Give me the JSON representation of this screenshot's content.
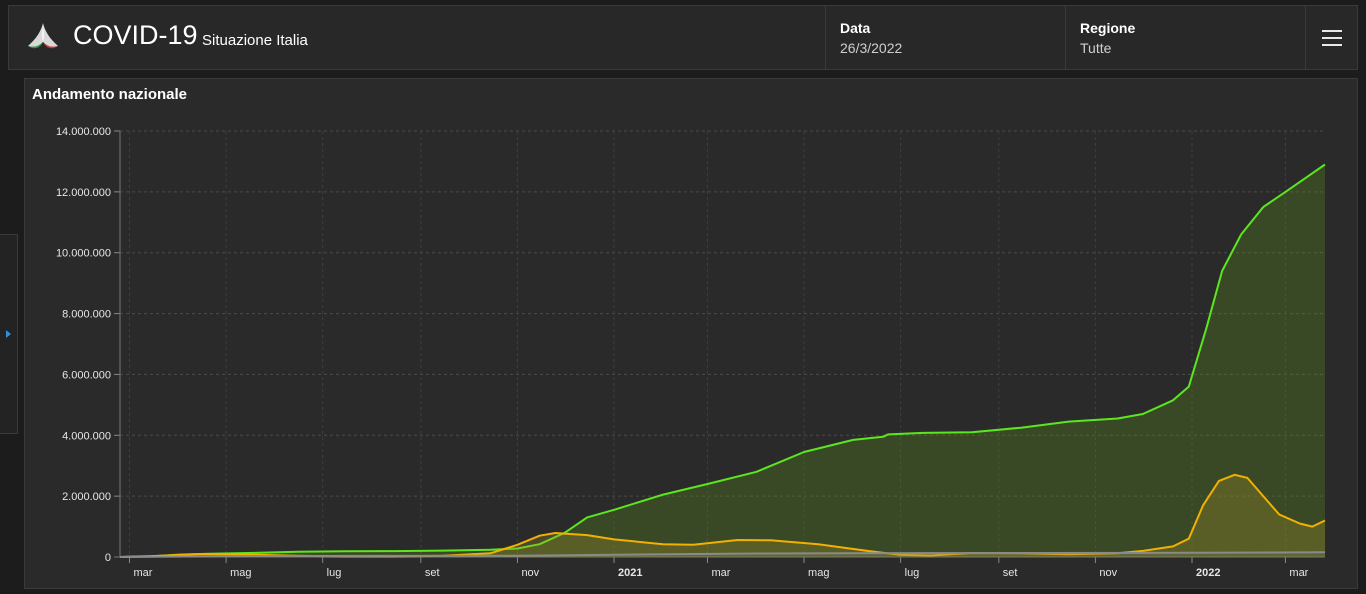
{
  "header": {
    "title": "COVID-19",
    "subtitle": "Situazione Italia",
    "data_label": "Data",
    "data_value": "26/3/2022",
    "region_label": "Regione",
    "region_value": "Tutte",
    "menu_icon": "hamburger-menu-icon",
    "logo_icon": "protezione-civile-logo"
  },
  "sidebar": {
    "toggle_icon": "triangle-right-icon",
    "accent": "#2f8fd8"
  },
  "chart_data": {
    "type": "area",
    "title": "Andamento nazionale",
    "ylim": [
      0,
      14000000
    ],
    "yticks": [
      0,
      2000000,
      4000000,
      6000000,
      8000000,
      10000000,
      12000000,
      14000000
    ],
    "ytick_labels": [
      "0",
      "2.000.000",
      "4.000.000",
      "6.000.000",
      "8.000.000",
      "10.000.000",
      "12.000.000",
      "14.000.000"
    ],
    "xlim": [
      "2020-02-24",
      "2022-03-26"
    ],
    "xticks": [
      {
        "date": "2020-03-01",
        "label": "mar",
        "bold": false
      },
      {
        "date": "2020-05-01",
        "label": "mag",
        "bold": false
      },
      {
        "date": "2020-07-01",
        "label": "lug",
        "bold": false
      },
      {
        "date": "2020-09-01",
        "label": "set",
        "bold": false
      },
      {
        "date": "2020-11-01",
        "label": "nov",
        "bold": false
      },
      {
        "date": "2021-01-01",
        "label": "2021",
        "bold": true
      },
      {
        "date": "2021-03-01",
        "label": "mar",
        "bold": false
      },
      {
        "date": "2021-05-01",
        "label": "mag",
        "bold": false
      },
      {
        "date": "2021-07-01",
        "label": "lug",
        "bold": false
      },
      {
        "date": "2021-09-01",
        "label": "set",
        "bold": false
      },
      {
        "date": "2021-11-01",
        "label": "nov",
        "bold": false
      },
      {
        "date": "2022-01-01",
        "label": "2022",
        "bold": true
      },
      {
        "date": "2022-03-01",
        "label": "mar",
        "bold": false
      }
    ],
    "grid": true,
    "series": [
      {
        "color": "#5ce61e",
        "fill": "rgba(90,140,30,0.32)",
        "points": [
          [
            "2020-02-24",
            0
          ],
          [
            "2020-03-15",
            20000
          ],
          [
            "2020-04-01",
            80000
          ],
          [
            "2020-04-20",
            110000
          ],
          [
            "2020-05-15",
            130000
          ],
          [
            "2020-06-15",
            170000
          ],
          [
            "2020-07-15",
            190000
          ],
          [
            "2020-08-15",
            195000
          ],
          [
            "2020-09-15",
            210000
          ],
          [
            "2020-10-15",
            240000
          ],
          [
            "2020-11-01",
            280000
          ],
          [
            "2020-11-15",
            420000
          ],
          [
            "2020-12-01",
            800000
          ],
          [
            "2020-12-15",
            1300000
          ],
          [
            "2021-01-01",
            1550000
          ],
          [
            "2021-02-01",
            2050000
          ],
          [
            "2021-03-01",
            2400000
          ],
          [
            "2021-04-01",
            2800000
          ],
          [
            "2021-05-01",
            3450000
          ],
          [
            "2021-06-01",
            3850000
          ],
          [
            "2021-06-20",
            3950000
          ],
          [
            "2021-06-23",
            4030000
          ],
          [
            "2021-07-15",
            4080000
          ],
          [
            "2021-08-15",
            4100000
          ],
          [
            "2021-09-15",
            4250000
          ],
          [
            "2021-10-15",
            4450000
          ],
          [
            "2021-11-15",
            4550000
          ],
          [
            "2021-12-01",
            4700000
          ],
          [
            "2021-12-20",
            5150000
          ],
          [
            "2021-12-30",
            5600000
          ],
          [
            "2022-01-10",
            7500000
          ],
          [
            "2022-01-20",
            9400000
          ],
          [
            "2022-02-01",
            10600000
          ],
          [
            "2022-02-15",
            11500000
          ],
          [
            "2022-03-01",
            12000000
          ],
          [
            "2022-03-15",
            12500000
          ],
          [
            "2022-03-26",
            12900000
          ]
        ]
      },
      {
        "color": "#f2b000",
        "fill": "rgba(170,150,40,0.28)",
        "points": [
          [
            "2020-02-24",
            0
          ],
          [
            "2020-03-15",
            30000
          ],
          [
            "2020-04-15",
            100000
          ],
          [
            "2020-05-15",
            80000
          ],
          [
            "2020-06-15",
            40000
          ],
          [
            "2020-07-15",
            15000
          ],
          [
            "2020-08-15",
            15000
          ],
          [
            "2020-09-15",
            40000
          ],
          [
            "2020-10-15",
            120000
          ],
          [
            "2020-11-01",
            400000
          ],
          [
            "2020-11-15",
            700000
          ],
          [
            "2020-11-25",
            790000
          ],
          [
            "2020-12-15",
            720000
          ],
          [
            "2021-01-01",
            580000
          ],
          [
            "2021-02-01",
            420000
          ],
          [
            "2021-02-20",
            400000
          ],
          [
            "2021-03-20",
            560000
          ],
          [
            "2021-04-10",
            550000
          ],
          [
            "2021-05-10",
            420000
          ],
          [
            "2021-06-10",
            200000
          ],
          [
            "2021-07-01",
            70000
          ],
          [
            "2021-07-20",
            50000
          ],
          [
            "2021-08-15",
            130000
          ],
          [
            "2021-09-15",
            120000
          ],
          [
            "2021-10-15",
            90000
          ],
          [
            "2021-11-15",
            120000
          ],
          [
            "2021-12-01",
            200000
          ],
          [
            "2021-12-20",
            350000
          ],
          [
            "2021-12-30",
            600000
          ],
          [
            "2022-01-08",
            1700000
          ],
          [
            "2022-01-18",
            2500000
          ],
          [
            "2022-01-28",
            2700000
          ],
          [
            "2022-02-05",
            2600000
          ],
          [
            "2022-02-15",
            2000000
          ],
          [
            "2022-02-25",
            1400000
          ],
          [
            "2022-03-10",
            1100000
          ],
          [
            "2022-03-18",
            1000000
          ],
          [
            "2022-03-26",
            1200000
          ]
        ]
      },
      {
        "color": "#8a8a8a",
        "fill": "rgba(120,120,120,0.25)",
        "points": [
          [
            "2020-02-24",
            0
          ],
          [
            "2020-05-01",
            30000
          ],
          [
            "2020-08-01",
            35000
          ],
          [
            "2020-11-01",
            40000
          ],
          [
            "2021-01-01",
            75000
          ],
          [
            "2021-04-01",
            115000
          ],
          [
            "2021-07-01",
            127000
          ],
          [
            "2021-10-01",
            131000
          ],
          [
            "2022-01-01",
            137000
          ],
          [
            "2022-03-26",
            158000
          ]
        ]
      }
    ]
  }
}
